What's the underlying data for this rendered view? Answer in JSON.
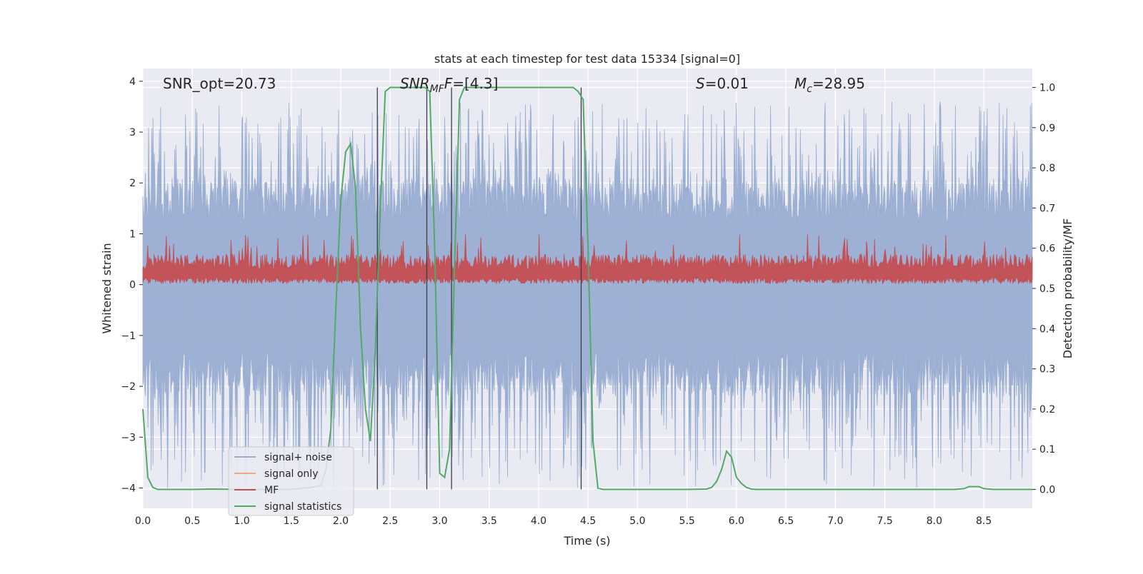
{
  "chart_data": {
    "type": "line",
    "title": "stats at each timestep for test data 15334 [signal=0]",
    "xlabel": "Time (s)",
    "ylabel": "Whitened strain",
    "ylabel_right": "Detection probability/MF",
    "xlim": [
      0.0,
      8.99
    ],
    "ylim": [
      -4.4,
      4.25
    ],
    "ylim_right": [
      -0.047,
      1.047
    ],
    "x_ticks": [
      "0.0",
      "0.5",
      "1.0",
      "1.5",
      "2.0",
      "2.5",
      "3.0",
      "3.5",
      "4.0",
      "4.5",
      "5.0",
      "5.5",
      "6.0",
      "6.5",
      "7.0",
      "7.5",
      "8.0",
      "8.5"
    ],
    "y_ticks": [
      "−4",
      "−3",
      "−2",
      "−1",
      "0",
      "1",
      "2",
      "3",
      "4"
    ],
    "y_ticks_right": [
      "0.0",
      "0.1",
      "0.2",
      "0.3",
      "0.4",
      "0.5",
      "0.6",
      "0.7",
      "0.8",
      "0.9",
      "1.0"
    ],
    "grid": true,
    "legend_position": "lower-left",
    "annotations": {
      "snr_opt": "SNR_opt=20.73",
      "snr_mf_main": "SNR",
      "snr_mf_sub": "MF",
      "snr_mf_value": "=[4.3]",
      "s_main": "S",
      "s_value": "=0.01",
      "mc_main": "M",
      "mc_sub": "c",
      "mc_value": "=28.95"
    },
    "vertical_lines_x": [
      2.37,
      2.87,
      3.12,
      4.43
    ],
    "series": [
      {
        "name": "signal+ noise",
        "color": "#9aaed2",
        "axis": "left",
        "description_only": false,
        "noise_band": {
          "low_typical": -1.6,
          "high_typical": 1.5,
          "max": 3.6,
          "min": -4.0
        }
      },
      {
        "name": "signal only",
        "color": "#f0a58a",
        "axis": "left",
        "values": []
      },
      {
        "name": "MF",
        "color": "#c44e52",
        "axis": "left",
        "band": {
          "low": 0.0,
          "high": 0.6,
          "spike_max": 1.0
        }
      },
      {
        "name": "signal statistics",
        "color": "#55a868",
        "axis": "right",
        "x": [
          0.0,
          0.05,
          0.1,
          0.15,
          0.2,
          0.3,
          0.5,
          0.7,
          1.0,
          1.2,
          1.5,
          1.7,
          1.8,
          1.85,
          1.9,
          1.95,
          2.0,
          2.05,
          2.1,
          2.15,
          2.2,
          2.25,
          2.3,
          2.35,
          2.4,
          2.45,
          2.5,
          2.55,
          2.6,
          2.7,
          2.8,
          2.85,
          2.9,
          2.95,
          3.0,
          3.05,
          3.1,
          3.15,
          3.2,
          3.25,
          3.3,
          3.4,
          3.6,
          3.8,
          4.0,
          4.2,
          4.35,
          4.4,
          4.45,
          4.5,
          4.55,
          4.6,
          4.65,
          4.7,
          4.8,
          5.0,
          5.2,
          5.5,
          5.7,
          5.75,
          5.8,
          5.85,
          5.9,
          5.95,
          6.0,
          6.05,
          6.1,
          6.15,
          6.2,
          6.5,
          7.0,
          7.5,
          8.0,
          8.2,
          8.3,
          8.35,
          8.4,
          8.45,
          8.5,
          8.6,
          8.8,
          8.99
        ],
        "y": [
          0.2,
          0.03,
          0.005,
          0.0,
          0.0,
          0.0,
          0.0,
          0.001,
          0.0,
          0.0,
          0.0,
          0.005,
          0.01,
          0.05,
          0.15,
          0.45,
          0.72,
          0.84,
          0.86,
          0.75,
          0.4,
          0.2,
          0.12,
          0.35,
          0.7,
          0.99,
          1.0,
          1.0,
          1.0,
          1.0,
          1.0,
          1.0,
          0.99,
          0.6,
          0.04,
          0.03,
          0.1,
          0.55,
          0.97,
          1.0,
          1.0,
          1.0,
          1.0,
          1.0,
          1.0,
          1.0,
          1.0,
          0.99,
          0.97,
          0.6,
          0.12,
          0.003,
          0.0,
          0.0,
          0.0,
          0.0,
          0.0,
          0.0,
          0.001,
          0.005,
          0.02,
          0.05,
          0.095,
          0.08,
          0.03,
          0.015,
          0.005,
          0.001,
          0.0,
          0.0,
          0.0,
          0.0,
          0.0,
          0.0,
          0.002,
          0.007,
          0.007,
          0.007,
          0.002,
          0.0,
          0.0,
          0.0
        ]
      }
    ]
  }
}
